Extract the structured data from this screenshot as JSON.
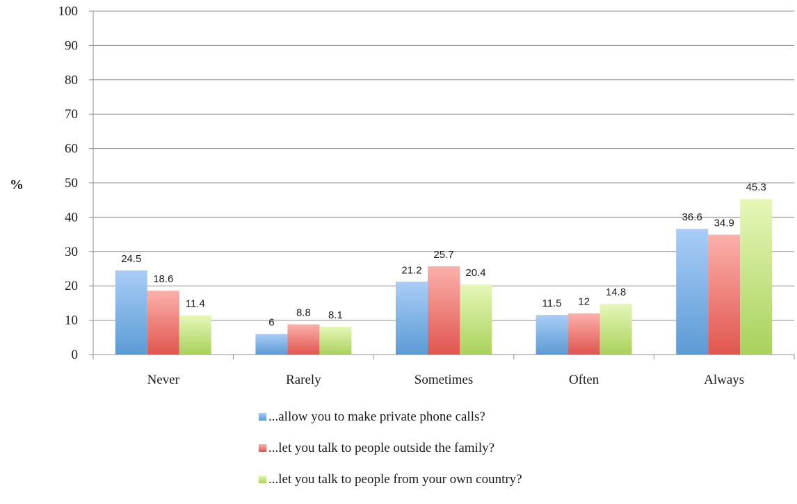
{
  "chart_data": {
    "type": "bar",
    "title": "",
    "xlabel": "",
    "ylabel": "%",
    "ylim": [
      0,
      100
    ],
    "yticks": [
      0,
      10,
      20,
      30,
      40,
      50,
      60,
      70,
      80,
      90,
      100
    ],
    "grid": true,
    "legend_position": "bottom",
    "categories": [
      "Never",
      "Rarely",
      "Sometimes",
      "Often",
      "Always"
    ],
    "series": [
      {
        "name": "...allow you to make private phone calls?",
        "values": [
          24.5,
          6,
          21.2,
          11.5,
          36.6
        ],
        "color": "#5b9bd5",
        "color_light": "#a9cdf7"
      },
      {
        "name": "...let you talk to people outside the family?",
        "values": [
          18.6,
          8.8,
          25.7,
          12,
          34.9
        ],
        "color": "#e0564f",
        "color_light": "#fcb0ab"
      },
      {
        "name": "...let you talk to people from your own country?",
        "values": [
          11.4,
          8.1,
          20.4,
          14.8,
          45.3
        ],
        "color": "#a9d15c",
        "color_light": "#e6f7b8"
      }
    ]
  }
}
